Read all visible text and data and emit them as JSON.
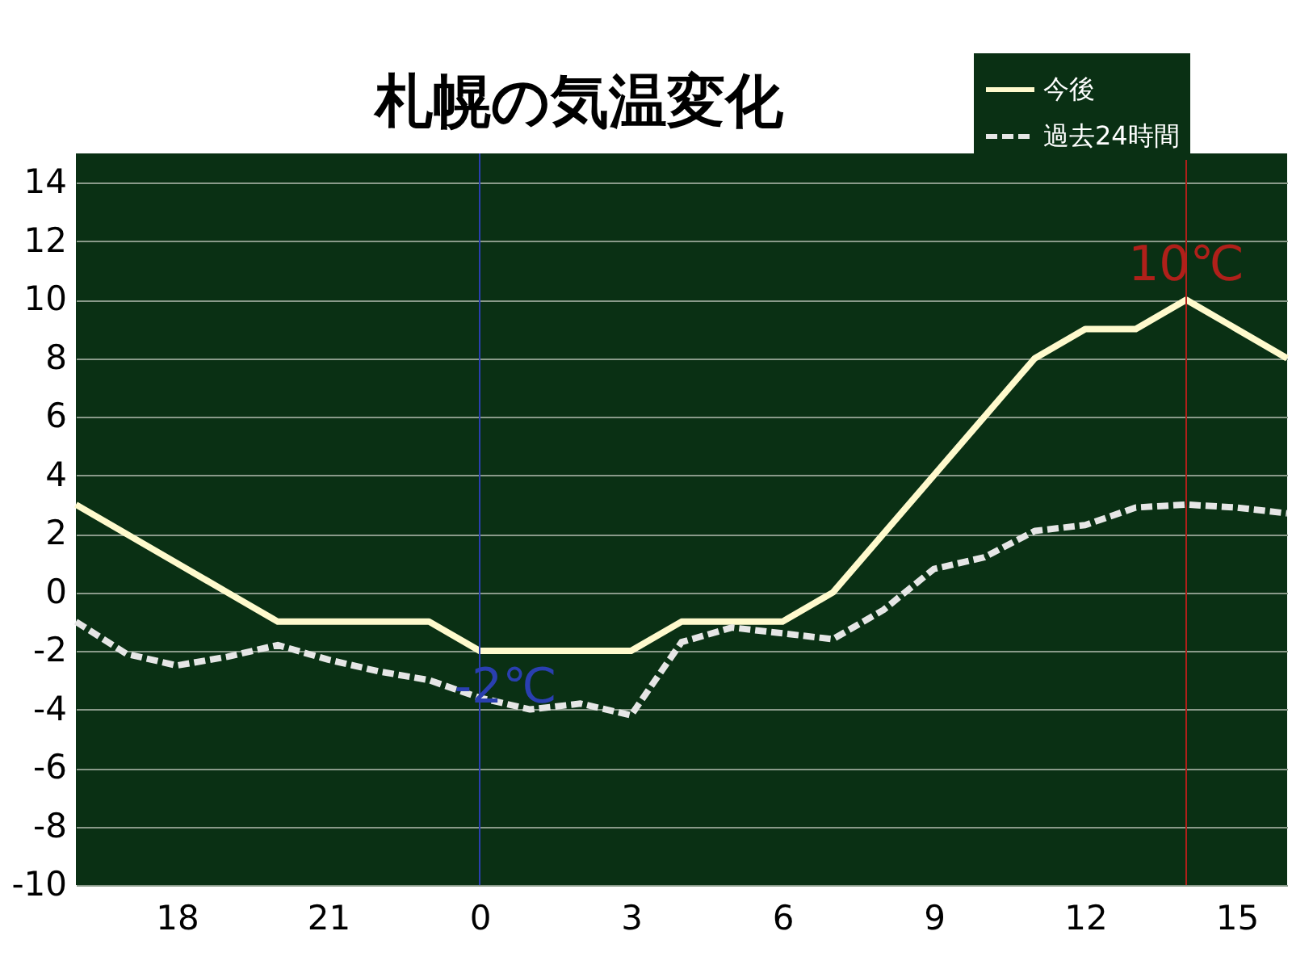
{
  "chart_data": {
    "type": "line",
    "title": "札幌の気温変化",
    "x": [
      "--01-01T16:00",
      "--01-01T17:00",
      "--01-01T18:00",
      "--01-01T19:00",
      "--01-01T20:00",
      "--01-01T21:00",
      "--01-01T22:00",
      "--01-01T23:00",
      "--01-02T00:00",
      "--01-02T01:00",
      "--01-02T02:00",
      "--01-02T03:00",
      "--01-02T04:00",
      "--01-02T05:00",
      "--01-02T06:00",
      "--01-02T07:00",
      "--01-02T08:00",
      "--01-02T09:00",
      "--01-02T10:00",
      "--01-02T11:00",
      "--01-02T12:00",
      "--01-02T13:00",
      "--01-02T14:00",
      "--01-02T15:00",
      "--01-02T16:00"
    ],
    "series": [
      {
        "name": "今後",
        "color": "#fffacd",
        "line_style": "solid",
        "values": [
          3,
          2,
          1,
          0,
          -1,
          -1,
          -1,
          -1,
          -2,
          -2,
          -2,
          -2,
          -1,
          -1,
          -1,
          0,
          2,
          4,
          6,
          8,
          9,
          9,
          10,
          9,
          8
        ]
      },
      {
        "name": "過去24時間",
        "color": "#e6e6e6",
        "line_style": "dashed",
        "values": [
          -1,
          -2.1,
          -2.5,
          -2.2,
          -1.8,
          -2.3,
          -2.7,
          -3,
          -3.6,
          -4,
          -3.8,
          -4.2,
          -1.7,
          -1.2,
          -1.4,
          -1.6,
          -0.6,
          0.8,
          1.2,
          2.1,
          2.3,
          2.9,
          3,
          2.9,
          2.7
        ]
      }
    ],
    "xlim": [
      "--01-01T16:00",
      "--01-02T16:00"
    ],
    "xticks": [
      {
        "value": "--01-01T18:00",
        "label": "18"
      },
      {
        "value": "--01-01T21:00",
        "label": "21"
      },
      {
        "value": "--01-02T00:00",
        "label": "0"
      },
      {
        "value": "--01-02T03:00",
        "label": "3"
      },
      {
        "value": "--01-02T06:00",
        "label": "6"
      },
      {
        "value": "--01-02T09:00",
        "label": "9"
      },
      {
        "value": "--01-02T12:00",
        "label": "12"
      },
      {
        "value": "--01-02T15:00",
        "label": "15"
      }
    ],
    "ylim": [
      -10,
      15
    ],
    "yticks": [
      -10,
      -8,
      -6,
      -4,
      -2,
      0,
      2,
      4,
      6,
      8,
      10,
      12,
      14
    ],
    "grid": "y",
    "legend": "top right",
    "marker": "none",
    "ref_lines": [
      {
        "axis": "x",
        "value": "--01-02T00:00",
        "color": "#2a3fb0"
      },
      {
        "axis": "x",
        "value": "--01-02T14:00",
        "color": "#b0201a"
      }
    ],
    "annotations": [
      {
        "text": "-2℃",
        "x": "--01-02T00:00",
        "y": -2
      },
      {
        "text": "10℃",
        "x": "--01-02T14:00",
        "y": 10
      }
    ]
  }
}
